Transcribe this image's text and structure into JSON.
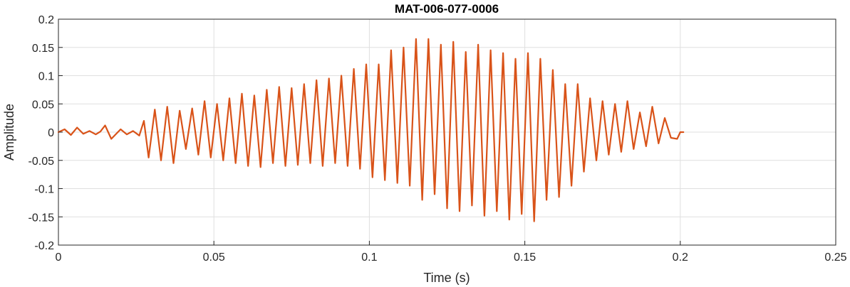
{
  "chart_data": {
    "type": "line",
    "title": "MAT-006-077-0006",
    "xlabel": "Time (s)",
    "ylabel": "Amplitude",
    "xlim": [
      0,
      0.25
    ],
    "ylim": [
      -0.2,
      0.2
    ],
    "x_ticks": [
      "0",
      "0.05",
      "0.1",
      "0.15",
      "0.2",
      "0.25"
    ],
    "y_ticks": [
      "0.2",
      "0.15",
      "0.1",
      "0.05",
      "0",
      "-0.05",
      "-0.1",
      "-0.15",
      "-0.2"
    ],
    "grid": true,
    "series": [
      {
        "color": "#D95319",
        "x": [
          0,
          0.002,
          0.004,
          0.006,
          0.008,
          0.01,
          0.012,
          0.0135,
          0.015,
          0.017,
          0.02,
          0.022,
          0.024,
          0.026,
          0.0275,
          0.029,
          0.031,
          0.033,
          0.035,
          0.037,
          0.039,
          0.041,
          0.043,
          0.045,
          0.047,
          0.049,
          0.051,
          0.053,
          0.055,
          0.057,
          0.059,
          0.061,
          0.063,
          0.065,
          0.067,
          0.069,
          0.071,
          0.073,
          0.075,
          0.077,
          0.079,
          0.081,
          0.083,
          0.085,
          0.087,
          0.089,
          0.091,
          0.093,
          0.095,
          0.097,
          0.099,
          0.101,
          0.103,
          0.105,
          0.107,
          0.109,
          0.111,
          0.113,
          0.115,
          0.117,
          0.119,
          0.121,
          0.123,
          0.125,
          0.127,
          0.129,
          0.131,
          0.133,
          0.135,
          0.137,
          0.139,
          0.141,
          0.143,
          0.145,
          0.147,
          0.149,
          0.151,
          0.153,
          0.155,
          0.157,
          0.159,
          0.161,
          0.163,
          0.165,
          0.167,
          0.169,
          0.171,
          0.173,
          0.175,
          0.177,
          0.179,
          0.181,
          0.183,
          0.185,
          0.187,
          0.189,
          0.191,
          0.193,
          0.195,
          0.197,
          0.199,
          0.2,
          0.201
        ],
        "y": [
          0,
          0.005,
          -0.005,
          0.008,
          -0.003,
          0.002,
          -0.004,
          0.001,
          0.012,
          -0.012,
          0.005,
          -0.004,
          0.002,
          -0.006,
          0.02,
          -0.045,
          0.04,
          -0.05,
          0.045,
          -0.055,
          0.038,
          -0.03,
          0.042,
          -0.04,
          0.055,
          -0.045,
          0.05,
          -0.05,
          0.06,
          -0.055,
          0.068,
          -0.06,
          0.065,
          -0.062,
          0.075,
          -0.055,
          0.08,
          -0.06,
          0.078,
          -0.058,
          0.085,
          -0.055,
          0.092,
          -0.06,
          0.095,
          -0.055,
          0.1,
          -0.06,
          0.112,
          -0.065,
          0.12,
          -0.08,
          0.12,
          -0.085,
          0.145,
          -0.09,
          0.15,
          -0.095,
          0.165,
          -0.12,
          0.165,
          -0.11,
          0.155,
          -0.135,
          0.16,
          -0.14,
          0.142,
          -0.13,
          0.155,
          -0.148,
          0.145,
          -0.14,
          0.14,
          -0.155,
          0.13,
          -0.145,
          0.14,
          -0.158,
          0.13,
          -0.12,
          0.11,
          -0.115,
          0.085,
          -0.095,
          0.085,
          -0.07,
          0.06,
          -0.05,
          0.055,
          -0.04,
          0.05,
          -0.035,
          0.055,
          -0.03,
          0.035,
          -0.025,
          0.045,
          -0.02,
          0.025,
          -0.01,
          -0.012,
          0.0,
          0.0
        ]
      }
    ]
  }
}
